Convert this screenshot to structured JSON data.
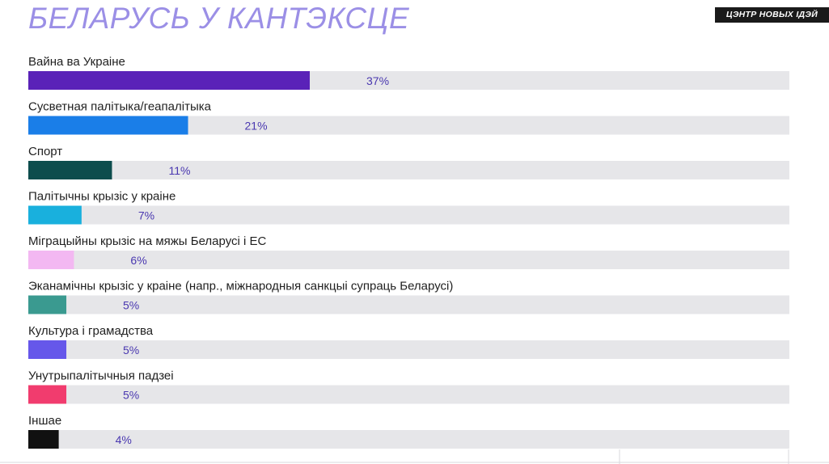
{
  "header": {
    "title": "БЕЛАРУСЬ У КАНТЭКСЦЕ",
    "brand": "ЦЭНТР НОВЫХ ІДЭЙ"
  },
  "chart_data": {
    "type": "bar",
    "orientation": "horizontal",
    "categories": [
      "Вайна ва Украіне",
      "Сусветная палітыка/геапалітыка",
      "Спорт",
      "Палітычны крызіс у краіне",
      "Міграцыйны крызіс на мяжы Беларусі і ЕС",
      "Эканамічны крызіс у краіне (напр., міжнародныя санкцыі супраць Беларусі)",
      "Культура і грамадства",
      "Унутрыпалітычныя падзеі",
      "Іншае"
    ],
    "values": [
      37,
      21,
      11,
      7,
      6,
      5,
      5,
      5,
      4
    ],
    "value_labels": [
      "37%",
      "21%",
      "11%",
      "7%",
      "6%",
      "5%",
      "5%",
      "5%",
      "4%"
    ],
    "colors": [
      "#5a22b8",
      "#1a7ee8",
      "#0d4d4d",
      "#19b0dd",
      "#f3b8f2",
      "#3a9a90",
      "#6657ea",
      "#f13c6e",
      "#111111"
    ],
    "track_color": "#e6e6e9",
    "xlim": [
      0,
      100
    ],
    "grid": false,
    "legend": "none"
  }
}
